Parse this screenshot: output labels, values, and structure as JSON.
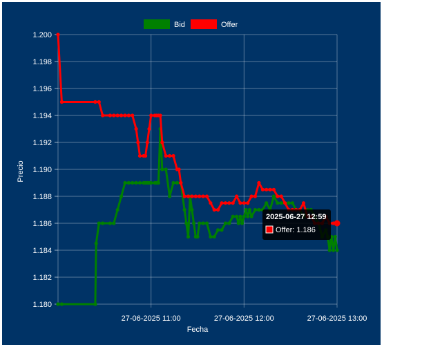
{
  "chart_data": {
    "type": "line",
    "xlabel": "Fecha",
    "ylabel": "Precio",
    "ylim": [
      1.18,
      1.2
    ],
    "yticks": [
      "1.180",
      "1.182",
      "1.184",
      "1.186",
      "1.188",
      "1.190",
      "1.192",
      "1.194",
      "1.196",
      "1.198",
      "1.200"
    ],
    "xlim_minutes": [
      0,
      150
    ],
    "xtick_minutes": [
      50,
      100,
      150
    ],
    "xticks": [
      "27-06-2025 11:00",
      "27-06-2025 12:00",
      "27-06-2025 13:00"
    ],
    "grid": true,
    "legend": "top",
    "series": [
      {
        "name": "Bid",
        "color": "#008000",
        "x": [
          0,
          2,
          20,
          20.5,
          22,
          24,
          28,
          30,
          32,
          34,
          36,
          38,
          40,
          42,
          44,
          46,
          47,
          48,
          49,
          50,
          52,
          53,
          54,
          55,
          56,
          58,
          60,
          62,
          64,
          66,
          68,
          69,
          70,
          71,
          72,
          73,
          74,
          75,
          76,
          78,
          80,
          82,
          84,
          86,
          88,
          90,
          92,
          94,
          96,
          97,
          98,
          99,
          100,
          101,
          102,
          103,
          104,
          106,
          108,
          110,
          112,
          114,
          116,
          118,
          120,
          122,
          124,
          126,
          128,
          130,
          132,
          134,
          136,
          138,
          140,
          142,
          144,
          145,
          146,
          147,
          148,
          149,
          150
        ],
        "y": [
          1.18,
          1.18,
          1.18,
          1.1845,
          1.186,
          1.186,
          1.186,
          1.186,
          1.187,
          1.188,
          1.189,
          1.189,
          1.189,
          1.189,
          1.189,
          1.189,
          1.189,
          1.189,
          1.189,
          1.189,
          1.189,
          1.189,
          1.189,
          1.193,
          1.19,
          1.19,
          1.188,
          1.189,
          1.189,
          1.189,
          1.187,
          1.186,
          1.185,
          1.188,
          1.187,
          1.186,
          1.185,
          1.185,
          1.186,
          1.186,
          1.186,
          1.185,
          1.185,
          1.1855,
          1.1855,
          1.186,
          1.186,
          1.1865,
          1.1865,
          1.186,
          1.1865,
          1.186,
          1.1865,
          1.187,
          1.1865,
          1.187,
          1.1865,
          1.187,
          1.187,
          1.187,
          1.1875,
          1.187,
          1.188,
          1.1875,
          1.1875,
          1.1875,
          1.1875,
          1.1875,
          1.187,
          1.187,
          1.1865,
          1.187,
          1.187,
          1.1865,
          1.186,
          1.185,
          1.1855,
          1.185,
          1.184,
          1.185,
          1.184,
          1.185,
          1.184
        ]
      },
      {
        "name": "Offer",
        "color": "#ff0000",
        "x": [
          0,
          2,
          20,
          22,
          24,
          28,
          30,
          32,
          34,
          36,
          38,
          40,
          42,
          43,
          44,
          46,
          47,
          48,
          49,
          50,
          52,
          53,
          54,
          55,
          56,
          58,
          60,
          62,
          64,
          65,
          66,
          68,
          70,
          72,
          74,
          76,
          78,
          80,
          82,
          84,
          86,
          88,
          90,
          92,
          94,
          96,
          98,
          100,
          102,
          104,
          106,
          108,
          110,
          112,
          114,
          116,
          118,
          120,
          122,
          124,
          126,
          128,
          130,
          132,
          134,
          136,
          138,
          140,
          142,
          144,
          146,
          148,
          150
        ],
        "y": [
          1.2,
          1.195,
          1.195,
          1.195,
          1.194,
          1.194,
          1.194,
          1.194,
          1.194,
          1.194,
          1.194,
          1.194,
          1.193,
          1.192,
          1.191,
          1.191,
          1.191,
          1.192,
          1.193,
          1.194,
          1.194,
          1.194,
          1.194,
          1.194,
          1.192,
          1.191,
          1.191,
          1.191,
          1.19,
          1.19,
          1.189,
          1.188,
          1.188,
          1.188,
          1.188,
          1.188,
          1.188,
          1.188,
          1.1875,
          1.187,
          1.187,
          1.1875,
          1.1875,
          1.1875,
          1.1875,
          1.188,
          1.1875,
          1.1875,
          1.1875,
          1.188,
          1.188,
          1.189,
          1.1885,
          1.1885,
          1.1885,
          1.1885,
          1.188,
          1.188,
          1.1875,
          1.187,
          1.187,
          1.187,
          1.187,
          1.1875,
          1.1865,
          1.1865,
          1.186,
          1.186,
          1.186,
          1.1865,
          1.186,
          1.186,
          1.186
        ]
      }
    ],
    "tooltip": {
      "title": "2025-06-27 12:59",
      "label": "Offer: 1.186",
      "series": "Offer"
    }
  }
}
